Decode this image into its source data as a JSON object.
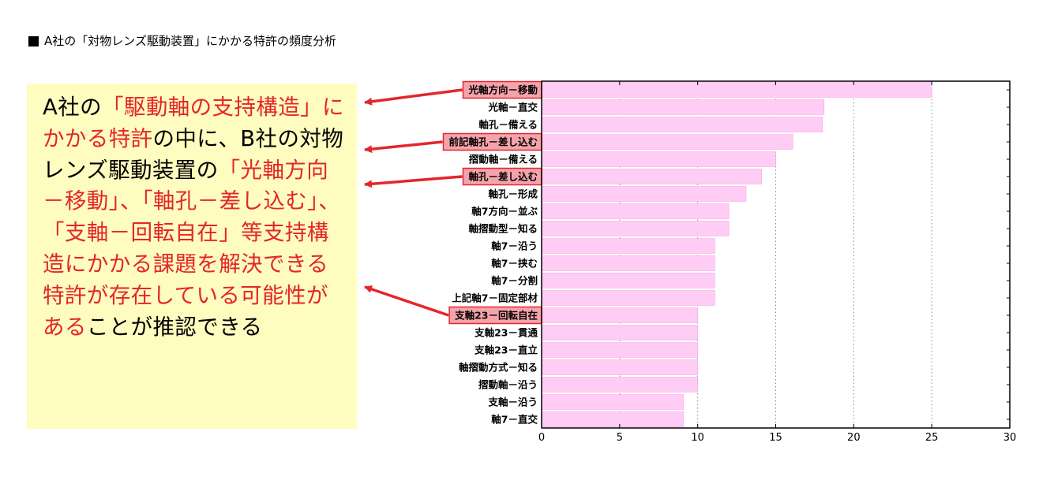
{
  "title": "A社の「対物レンズ駆動装置」にかかる特許の頻度分析",
  "note": {
    "segments": [
      {
        "text": "A社の",
        "highlight": false
      },
      {
        "text": "「駆動軸の支持構造」にかかる特許",
        "highlight": true
      },
      {
        "text": "の中に、B社の対物レンズ駆動装置の",
        "highlight": false
      },
      {
        "text": "「光軸方向－移動」、「軸孔－差し込む」、「支軸－回転自在」等支持構造にかかる課題を解決できる特許が存在している可能性がある",
        "highlight": true
      },
      {
        "text": "ことが推認できる",
        "highlight": false
      }
    ]
  },
  "colors": {
    "bar": "#ffccf5",
    "highlight_box": "#f5a3ab",
    "highlight_border": "#e3262d",
    "arrow": "#e3262d",
    "note_bg": "#fffcc0"
  },
  "chart_data": {
    "type": "bar",
    "orientation": "horizontal",
    "categories": [
      "光軸方向－移動",
      "光軸－直交",
      "軸孔－備える",
      "前記軸孔－差し込む",
      "摺動軸－備える",
      "軸孔－差し込む",
      "軸孔－形成",
      "軸7方向－並ぶ",
      "軸摺動型－知る",
      "軸7－沿う",
      "軸7－挟む",
      "軸7－分割",
      "上記軸7－固定部材",
      "支軸23－回転自在",
      "支軸23－貫通",
      "支軸23－直立",
      "軸摺動方式－知る",
      "摺動軸－沿う",
      "支軸－沿う",
      "軸7－直交"
    ],
    "values": [
      25,
      18.1,
      18,
      16.1,
      15,
      14.1,
      13.1,
      12,
      12,
      11.1,
      11.1,
      11.1,
      11.1,
      10,
      10,
      10,
      10,
      10,
      9.1,
      9.1
    ],
    "highlighted": [
      "光軸方向－移動",
      "前記軸孔－差し込む",
      "軸孔－差し込む",
      "支軸23－回転自在"
    ],
    "xlim": [
      0,
      30
    ],
    "xticks": [
      0,
      5,
      10,
      15,
      20,
      25,
      30
    ],
    "xtick_labels": [
      "0",
      "5",
      "10",
      "15",
      "20",
      "25",
      "30"
    ],
    "grid": "vertical-dotted",
    "legend": "none"
  }
}
